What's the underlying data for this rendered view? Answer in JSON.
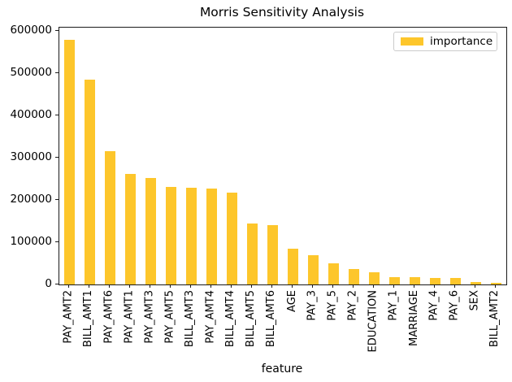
{
  "figure": {
    "background": "#ffffff",
    "axis_color": "#1a1a1a",
    "text_color": "#000000"
  },
  "chart_data": {
    "type": "bar",
    "title": "Morris Sensitivity Analysis",
    "xlabel": "feature",
    "ylabel": "",
    "legend": {
      "label": "importance",
      "position": "upper right"
    },
    "bar_color": "#FDC62B",
    "grid": false,
    "categories": [
      "PAY_AMT2",
      "BILL_AMT1",
      "PAY_AMT6",
      "PAY_AMT1",
      "PAY_AMT3",
      "PAY_AMT5",
      "BILL_AMT3",
      "PAY_AMT4",
      "BILL_AMT4",
      "BILL_AMT5",
      "BILL_AMT6",
      "AGE",
      "PAY_3",
      "PAY_5",
      "PAY_2",
      "EDUCATION",
      "PAY_1",
      "MARRIAGE",
      "PAY_4",
      "PAY_6",
      "SEX",
      "BILL_AMT2"
    ],
    "values": [
      578000,
      484000,
      316000,
      262000,
      251000,
      230000,
      228000,
      226000,
      217000,
      145000,
      140000,
      84000,
      70000,
      50000,
      36000,
      29000,
      17000,
      16500,
      15000,
      14500,
      6000,
      3000
    ],
    "ylim": [
      0,
      607000
    ],
    "yticks": [
      0,
      100000,
      200000,
      300000,
      400000,
      500000,
      600000
    ],
    "bar_rel_width": 0.5,
    "xtick_rotation_deg": 90
  }
}
